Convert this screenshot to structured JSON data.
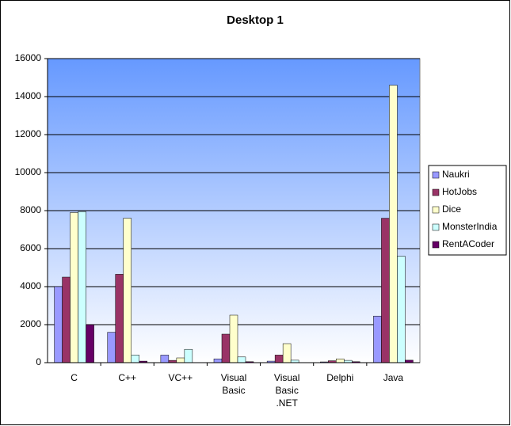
{
  "chart_data": {
    "type": "bar",
    "title": "Desktop 1",
    "categories": [
      "C",
      "C++",
      "VC++",
      "Visual Basic",
      "Visual Basic .NET",
      "Delphi",
      "Java"
    ],
    "series": [
      {
        "name": "Naukri",
        "color": "#9999ff",
        "values": [
          4000,
          1600,
          400,
          200,
          80,
          40,
          2450
        ]
      },
      {
        "name": "HotJobs",
        "color": "#993366",
        "values": [
          4500,
          4650,
          120,
          1500,
          400,
          100,
          7600
        ]
      },
      {
        "name": "Dice",
        "color": "#ffffcc",
        "values": [
          7900,
          7600,
          250,
          2500,
          1000,
          200,
          14600
        ]
      },
      {
        "name": "MonsterIndia",
        "color": "#ccffff",
        "values": [
          7950,
          400,
          700,
          300,
          130,
          120,
          5600
        ]
      },
      {
        "name": "RentACoder",
        "color": "#660066",
        "values": [
          2000,
          80,
          10,
          50,
          0,
          50,
          130
        ]
      }
    ],
    "ylim": [
      0,
      16000
    ],
    "yticks": [
      0,
      2000,
      4000,
      6000,
      8000,
      10000,
      12000,
      14000,
      16000
    ],
    "grid": true,
    "legend": "right"
  }
}
